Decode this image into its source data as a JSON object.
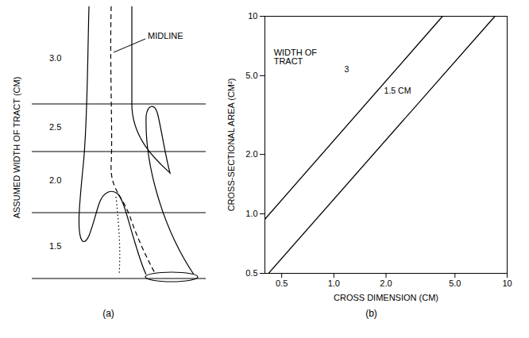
{
  "chart_data": [
    {
      "type": "diagram",
      "y_label": "ASSUMED WIDTH OF TRACT (CM)",
      "band_labels": [
        "3.0",
        "2.5",
        "2.0",
        "1.5"
      ],
      "annotations": [
        "MIDLINE"
      ],
      "caption": "(a)"
    },
    {
      "type": "line",
      "caption": "(b)",
      "x_label": "CROSS DIMENSION (CM)",
      "y_label": "CROSS-SECTIONAL AREA (CM²)",
      "log": true,
      "xlim": [
        0.4,
        10
      ],
      "ylim": [
        0.5,
        10
      ],
      "xticks": [
        0.5,
        {
          "value": 1,
          "label": "1.0"
        },
        {
          "value": 2,
          "label": "2.0"
        },
        {
          "value": 5,
          "label": "5.0"
        },
        10
      ],
      "yticks": [
        0.5,
        {
          "value": 1,
          "label": "1.0"
        },
        {
          "value": 2,
          "label": "2.0"
        },
        {
          "value": 5,
          "label": "5.0"
        },
        10
      ],
      "annotations": [
        "WIDTH OF TRACT"
      ],
      "series": [
        {
          "name": "3",
          "color": "#000000",
          "x": [
            0.4,
            4.24
          ],
          "values": [
            0.94,
            10
          ]
        },
        {
          "name": "1.5 CM",
          "color": "#000000",
          "x": [
            0.42,
            8.5
          ],
          "values": [
            0.5,
            10
          ]
        }
      ]
    }
  ]
}
